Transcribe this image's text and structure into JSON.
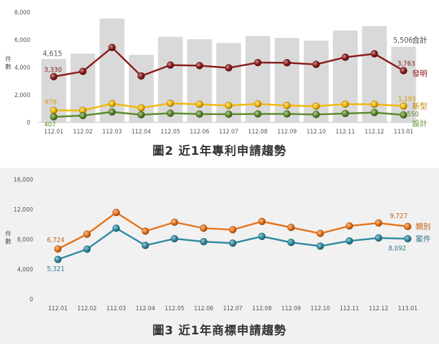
{
  "chart_data": [
    {
      "type": "bar+line",
      "title": "圖2 近1年專利申請趨勢",
      "ylabel": "件數",
      "ylim": [
        0,
        8000
      ],
      "yticks": [
        "0",
        "2,000",
        "4,000",
        "6,000",
        "8,000"
      ],
      "categories": [
        "112.01",
        "112.02",
        "112.03",
        "112.04",
        "112.05",
        "112.06",
        "112.07",
        "112.08",
        "112.09",
        "112.10",
        "112.11",
        "112.12",
        "113.01"
      ],
      "bars": {
        "name": "合計",
        "color": "#d9d9d9",
        "values": [
          4615,
          5000,
          7560,
          4920,
          6230,
          6050,
          5770,
          6280,
          6150,
          5950,
          6680,
          7000,
          5506
        ]
      },
      "series": [
        {
          "name": "發明",
          "color": "#8b1a1a",
          "values": [
            3330,
            3710,
            5450,
            3380,
            4170,
            4130,
            3970,
            4350,
            4340,
            4220,
            4740,
            4990,
            3763
          ]
        },
        {
          "name": "新型",
          "color": "#f2b705",
          "values": [
            878,
            880,
            1370,
            1060,
            1390,
            1320,
            1230,
            1350,
            1230,
            1180,
            1330,
            1320,
            1193
          ]
        },
        {
          "name": "設計",
          "color": "#5a8a2a",
          "values": [
            407,
            500,
            760,
            560,
            670,
            610,
            600,
            620,
            620,
            580,
            650,
            720,
            550
          ]
        }
      ],
      "data_labels": {
        "total_first": "4,615",
        "total_last": "5,506",
        "invention_first": "3,330",
        "invention_last": "3,763",
        "utility_first": "878",
        "utility_last": "1,193",
        "design_first": "407",
        "design_last": "550"
      },
      "legend_placement": "inline-right",
      "grid": false
    },
    {
      "type": "line",
      "title": "圖3 近1年商標申請趨勢",
      "ylabel": "件數",
      "ylim": [
        0,
        16000
      ],
      "yticks": [
        "0",
        "4,000",
        "8,000",
        "12,000",
        "16,000"
      ],
      "categories": [
        "112.01",
        "112.02",
        "112.03",
        "112.04",
        "112.05",
        "112.06",
        "112.07",
        "112.08",
        "112.09",
        "112.10",
        "112.11",
        "112.12",
        "113.01"
      ],
      "series": [
        {
          "name": "類別",
          "color": "#e8731a",
          "values": [
            6724,
            8700,
            11600,
            9100,
            10300,
            9500,
            9300,
            10400,
            9600,
            8800,
            9800,
            10200,
            9727
          ]
        },
        {
          "name": "案件",
          "color": "#2f8aa0",
          "values": [
            5321,
            6700,
            9500,
            7200,
            8100,
            7700,
            7500,
            8400,
            7600,
            7100,
            7800,
            8200,
            8092
          ]
        }
      ],
      "data_labels": {
        "class_first": "6,724",
        "class_last": "9,727",
        "case_first": "5,321",
        "case_last": "8,092"
      },
      "legend_placement": "inline-right",
      "grid": false
    }
  ]
}
